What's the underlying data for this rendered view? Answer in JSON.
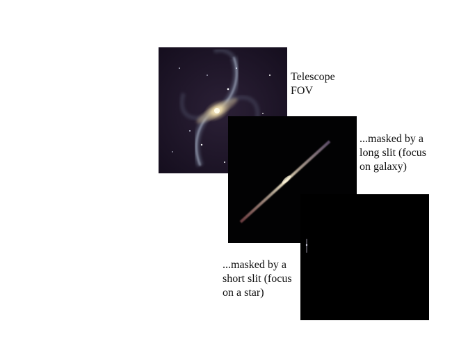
{
  "panels": [
    {
      "id": "telescope-fov",
      "caption_lines": [
        "Telescope",
        "FOV"
      ]
    },
    {
      "id": "long-slit",
      "caption_lines": [
        "...masked by a",
        "long slit (focus",
        "on galaxy)"
      ]
    },
    {
      "id": "short-slit",
      "caption_lines": [
        "...masked by a",
        "short slit (focus",
        "on a star)"
      ]
    }
  ]
}
